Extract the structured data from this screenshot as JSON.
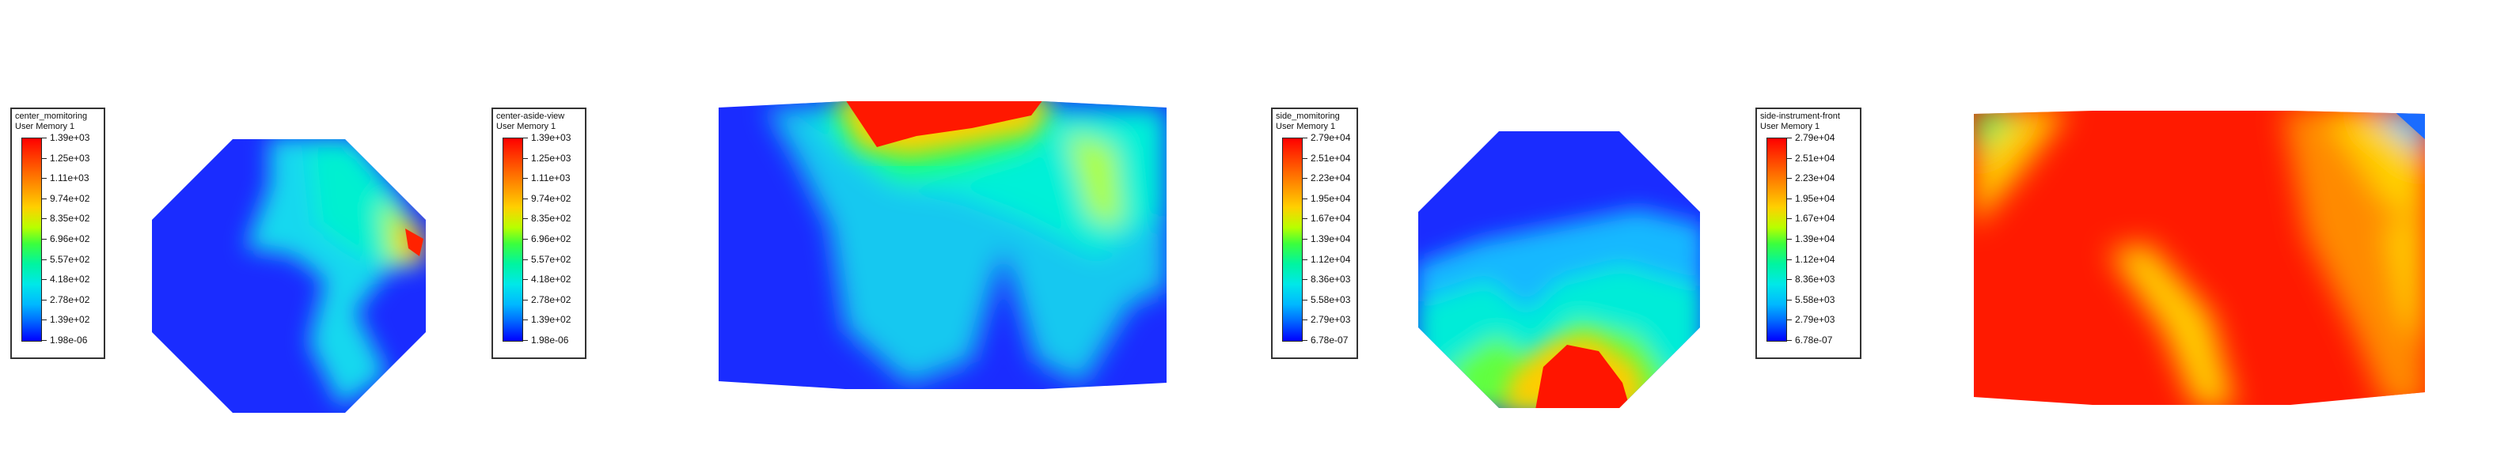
{
  "panels": [
    {
      "legend": {
        "title": "center_momitoring",
        "subtitle": "User Memory 1",
        "ticks": [
          "1.39e+03",
          "1.25e+03",
          "1.11e+03",
          "9.74e+02",
          "8.35e+02",
          "6.96e+02",
          "5.57e+02",
          "4.18e+02",
          "2.78e+02",
          "1.39e+02",
          "1.98e-06"
        ]
      }
    },
    {
      "legend": {
        "title": "center-aside-view",
        "subtitle": "User Memory 1",
        "ticks": [
          "1.39e+03",
          "1.25e+03",
          "1.11e+03",
          "9.74e+02",
          "8.35e+02",
          "6.96e+02",
          "5.57e+02",
          "4.18e+02",
          "2.78e+02",
          "1.39e+02",
          "1.98e-06"
        ]
      }
    },
    {
      "legend": {
        "title": "side_momitoring",
        "subtitle": "User Memory 1",
        "ticks": [
          "2.79e+04",
          "2.51e+04",
          "2.23e+04",
          "1.95e+04",
          "1.67e+04",
          "1.39e+04",
          "1.12e+04",
          "8.36e+03",
          "5.58e+03",
          "2.79e+03",
          "6.78e-07"
        ]
      }
    },
    {
      "legend": {
        "title": "side-instrument-front",
        "subtitle": "User Memory 1",
        "ticks": [
          "2.79e+04",
          "2.51e+04",
          "2.23e+04",
          "1.95e+04",
          "1.67e+04",
          "1.39e+04",
          "1.12e+04",
          "8.36e+03",
          "5.58e+03",
          "2.79e+03",
          "6.78e-07"
        ]
      }
    }
  ],
  "colors": {
    "blue": "#0000ff",
    "cyan": "#00e8e8",
    "green": "#3cff3c",
    "yellow": "#ffd000",
    "orange": "#ff8800",
    "red": "#ff0000"
  }
}
